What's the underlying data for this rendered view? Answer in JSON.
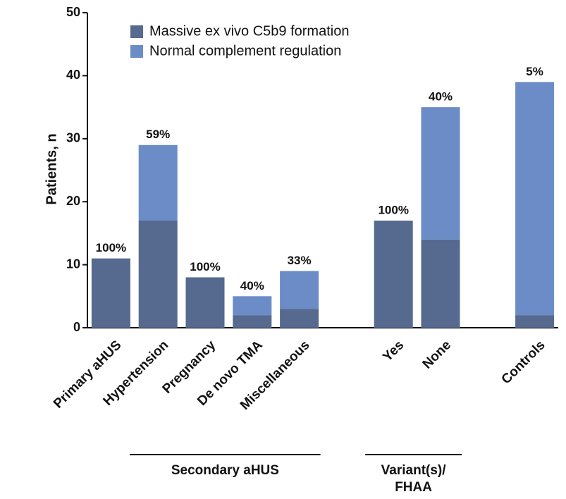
{
  "chart_data": {
    "type": "stacked-bar",
    "ylabel": "Patients, n",
    "categories": [
      "Primary aHUS",
      "Hypertension",
      "Pregnancy",
      "De novo TMA",
      "Miscellaneous",
      null,
      "Yes",
      "None",
      null,
      "Controls"
    ],
    "series": [
      {
        "name": "Massive ex vivo C5b9 formation",
        "color": "#56698e",
        "values": [
          11,
          17,
          8,
          2,
          3,
          null,
          17,
          14,
          null,
          2
        ]
      },
      {
        "name": "Normal complement regulation",
        "color": "#6b8cc7",
        "values": [
          0,
          12,
          0,
          3,
          6,
          null,
          0,
          21,
          null,
          37
        ]
      }
    ],
    "annotations": [
      "100%",
      "59%",
      "100%",
      "40%",
      "33%",
      null,
      "100%",
      "40%",
      null,
      "5%"
    ],
    "groups": [
      {
        "lines": [
          "Secondary aHUS"
        ],
        "span": [
          1,
          4
        ]
      },
      {
        "lines": [
          "Variant(s)/",
          "FHAA"
        ],
        "span": [
          6,
          7
        ]
      }
    ],
    "ylim": [
      0,
      50
    ],
    "yticks": [
      0,
      10,
      20,
      30,
      40,
      50
    ],
    "legend": "upper left"
  }
}
